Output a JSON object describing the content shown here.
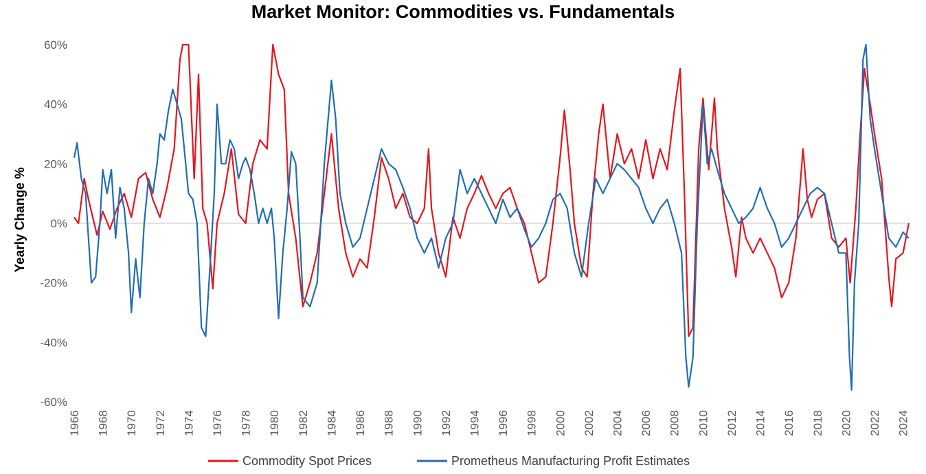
{
  "chart_data": {
    "type": "line",
    "title": "Market Monitor: Commodities vs. Fundamentals",
    "xlabel": "",
    "ylabel": "Yearly Change %",
    "xlim": [
      1966,
      2024.5
    ],
    "ylim": [
      -60,
      60
    ],
    "y_ticks": [
      60,
      40,
      20,
      0,
      -20,
      -40,
      -60
    ],
    "y_tick_labels": [
      "60%",
      "40%",
      "20%",
      "0%",
      "-20%",
      "-40%",
      "-60%"
    ],
    "x_ticks": [
      1966,
      1968,
      1970,
      1972,
      1974,
      1976,
      1978,
      1980,
      1982,
      1984,
      1986,
      1988,
      1990,
      1992,
      1994,
      1996,
      1998,
      2000,
      2002,
      2004,
      2006,
      2008,
      2010,
      2012,
      2014,
      2016,
      2018,
      2020,
      2022,
      2024
    ],
    "x_tick_labels": [
      "1966",
      "1968",
      "1970",
      "1972",
      "1974",
      "1976",
      "1978",
      "1980",
      "1982",
      "1984",
      "1986",
      "1988",
      "1990",
      "1992",
      "1994",
      "1996",
      "1998",
      "2000",
      "2002",
      "2004",
      "2006",
      "2008",
      "2010",
      "2012",
      "2014",
      "2016",
      "2018",
      "2020",
      "2022",
      "2024"
    ],
    "legend_position": "bottom",
    "series": [
      {
        "name": "Commodity Spot Prices",
        "color": "#E8141B",
        "points": [
          [
            1966.0,
            2
          ],
          [
            1966.3,
            0
          ],
          [
            1966.7,
            15
          ],
          [
            1967.0,
            8
          ],
          [
            1967.3,
            2
          ],
          [
            1967.6,
            -4
          ],
          [
            1968.0,
            4
          ],
          [
            1968.5,
            -2
          ],
          [
            1969.0,
            5
          ],
          [
            1969.5,
            10
          ],
          [
            1970.0,
            2
          ],
          [
            1970.5,
            15
          ],
          [
            1971.0,
            17
          ],
          [
            1971.5,
            8
          ],
          [
            1972.0,
            2
          ],
          [
            1972.5,
            12
          ],
          [
            1973.0,
            25
          ],
          [
            1973.4,
            55
          ],
          [
            1973.6,
            65
          ],
          [
            1974.0,
            60
          ],
          [
            1974.4,
            15
          ],
          [
            1974.7,
            50
          ],
          [
            1975.0,
            5
          ],
          [
            1975.3,
            0
          ],
          [
            1975.7,
            -22
          ],
          [
            1976.0,
            0
          ],
          [
            1976.5,
            10
          ],
          [
            1977.0,
            25
          ],
          [
            1977.5,
            3
          ],
          [
            1978.0,
            0
          ],
          [
            1978.5,
            20
          ],
          [
            1979.0,
            28
          ],
          [
            1979.5,
            25
          ],
          [
            1979.9,
            62
          ],
          [
            1980.3,
            50
          ],
          [
            1980.7,
            45
          ],
          [
            1981.0,
            10
          ],
          [
            1981.5,
            -5
          ],
          [
            1982.0,
            -28
          ],
          [
            1982.5,
            -20
          ],
          [
            1983.0,
            -10
          ],
          [
            1983.5,
            10
          ],
          [
            1984.0,
            30
          ],
          [
            1984.5,
            5
          ],
          [
            1985.0,
            -10
          ],
          [
            1985.5,
            -18
          ],
          [
            1986.0,
            -12
          ],
          [
            1986.5,
            -15
          ],
          [
            1987.0,
            2
          ],
          [
            1987.5,
            22
          ],
          [
            1988.0,
            15
          ],
          [
            1988.5,
            5
          ],
          [
            1989.0,
            10
          ],
          [
            1989.5,
            2
          ],
          [
            1990.0,
            0
          ],
          [
            1990.5,
            5
          ],
          [
            1990.8,
            25
          ],
          [
            1991.0,
            5
          ],
          [
            1991.5,
            -10
          ],
          [
            1992.0,
            -18
          ],
          [
            1992.5,
            2
          ],
          [
            1993.0,
            -5
          ],
          [
            1993.5,
            5
          ],
          [
            1994.0,
            10
          ],
          [
            1994.5,
            16
          ],
          [
            1995.0,
            10
          ],
          [
            1995.5,
            5
          ],
          [
            1996.0,
            10
          ],
          [
            1996.5,
            12
          ],
          [
            1997.0,
            5
          ],
          [
            1997.5,
            0
          ],
          [
            1998.0,
            -10
          ],
          [
            1998.5,
            -20
          ],
          [
            1999.0,
            -18
          ],
          [
            1999.5,
            0
          ],
          [
            2000.0,
            22
          ],
          [
            2000.3,
            38
          ],
          [
            2000.7,
            18
          ],
          [
            2001.0,
            0
          ],
          [
            2001.5,
            -15
          ],
          [
            2001.9,
            -18
          ],
          [
            2002.3,
            10
          ],
          [
            2002.7,
            30
          ],
          [
            2003.0,
            40
          ],
          [
            2003.5,
            15
          ],
          [
            2004.0,
            30
          ],
          [
            2004.5,
            20
          ],
          [
            2005.0,
            25
          ],
          [
            2005.5,
            15
          ],
          [
            2006.0,
            28
          ],
          [
            2006.5,
            15
          ],
          [
            2007.0,
            25
          ],
          [
            2007.5,
            18
          ],
          [
            2008.0,
            38
          ],
          [
            2008.4,
            52
          ],
          [
            2008.7,
            10
          ],
          [
            2009.0,
            -38
          ],
          [
            2009.3,
            -35
          ],
          [
            2009.7,
            25
          ],
          [
            2010.0,
            42
          ],
          [
            2010.4,
            18
          ],
          [
            2010.8,
            42
          ],
          [
            2011.0,
            25
          ],
          [
            2011.5,
            5
          ],
          [
            2012.0,
            -8
          ],
          [
            2012.3,
            -18
          ],
          [
            2012.7,
            2
          ],
          [
            2013.0,
            -5
          ],
          [
            2013.5,
            -10
          ],
          [
            2014.0,
            -5
          ],
          [
            2014.5,
            -10
          ],
          [
            2015.0,
            -15
          ],
          [
            2015.5,
            -25
          ],
          [
            2016.0,
            -20
          ],
          [
            2016.5,
            -5
          ],
          [
            2017.0,
            25
          ],
          [
            2017.3,
            8
          ],
          [
            2017.6,
            2
          ],
          [
            2018.0,
            8
          ],
          [
            2018.5,
            10
          ],
          [
            2019.0,
            -5
          ],
          [
            2019.5,
            -8
          ],
          [
            2020.0,
            -5
          ],
          [
            2020.3,
            -20
          ],
          [
            2020.7,
            5
          ],
          [
            2021.0,
            30
          ],
          [
            2021.3,
            52
          ],
          [
            2021.7,
            40
          ],
          [
            2022.0,
            30
          ],
          [
            2022.5,
            15
          ],
          [
            2023.0,
            -18
          ],
          [
            2023.2,
            -28
          ],
          [
            2023.5,
            -12
          ],
          [
            2024.0,
            -10
          ],
          [
            2024.4,
            0
          ]
        ]
      },
      {
        "name": "Prometheus Manufacturing Profit Estimates",
        "color": "#1F6DB5",
        "points": [
          [
            1966.0,
            22
          ],
          [
            1966.2,
            27
          ],
          [
            1966.5,
            15
          ],
          [
            1966.8,
            10
          ],
          [
            1967.0,
            -5
          ],
          [
            1967.2,
            -20
          ],
          [
            1967.5,
            -18
          ],
          [
            1967.8,
            0
          ],
          [
            1968.0,
            18
          ],
          [
            1968.3,
            10
          ],
          [
            1968.6,
            18
          ],
          [
            1968.9,
            -5
          ],
          [
            1969.2,
            12
          ],
          [
            1969.5,
            5
          ],
          [
            1969.8,
            -10
          ],
          [
            1970.0,
            -30
          ],
          [
            1970.3,
            -12
          ],
          [
            1970.6,
            -25
          ],
          [
            1970.9,
            0
          ],
          [
            1971.2,
            15
          ],
          [
            1971.5,
            10
          ],
          [
            1971.8,
            20
          ],
          [
            1972.0,
            30
          ],
          [
            1972.3,
            28
          ],
          [
            1972.6,
            38
          ],
          [
            1972.9,
            45
          ],
          [
            1973.2,
            40
          ],
          [
            1973.5,
            35
          ],
          [
            1973.8,
            20
          ],
          [
            1974.0,
            10
          ],
          [
            1974.3,
            8
          ],
          [
            1974.6,
            0
          ],
          [
            1974.9,
            -35
          ],
          [
            1975.2,
            -38
          ],
          [
            1975.5,
            -15
          ],
          [
            1975.8,
            10
          ],
          [
            1976.0,
            40
          ],
          [
            1976.3,
            20
          ],
          [
            1976.6,
            20
          ],
          [
            1976.9,
            28
          ],
          [
            1977.2,
            25
          ],
          [
            1977.5,
            15
          ],
          [
            1977.8,
            20
          ],
          [
            1978.0,
            22
          ],
          [
            1978.3,
            18
          ],
          [
            1978.6,
            10
          ],
          [
            1978.9,
            0
          ],
          [
            1979.2,
            5
          ],
          [
            1979.5,
            0
          ],
          [
            1979.8,
            5
          ],
          [
            1980.0,
            -5
          ],
          [
            1980.3,
            -32
          ],
          [
            1980.6,
            -10
          ],
          [
            1980.9,
            5
          ],
          [
            1981.2,
            24
          ],
          [
            1981.5,
            20
          ],
          [
            1981.8,
            -5
          ],
          [
            1982.0,
            -25
          ],
          [
            1982.5,
            -28
          ],
          [
            1983.0,
            -20
          ],
          [
            1983.5,
            20
          ],
          [
            1984.0,
            48
          ],
          [
            1984.3,
            35
          ],
          [
            1984.6,
            10
          ],
          [
            1985.0,
            0
          ],
          [
            1985.5,
            -8
          ],
          [
            1986.0,
            -5
          ],
          [
            1986.5,
            5
          ],
          [
            1987.0,
            15
          ],
          [
            1987.5,
            25
          ],
          [
            1988.0,
            20
          ],
          [
            1988.5,
            18
          ],
          [
            1989.0,
            12
          ],
          [
            1989.5,
            5
          ],
          [
            1990.0,
            -5
          ],
          [
            1990.5,
            -10
          ],
          [
            1991.0,
            -5
          ],
          [
            1991.5,
            -15
          ],
          [
            1992.0,
            -5
          ],
          [
            1992.5,
            0
          ],
          [
            1993.0,
            18
          ],
          [
            1993.5,
            10
          ],
          [
            1994.0,
            15
          ],
          [
            1994.5,
            10
          ],
          [
            1995.0,
            5
          ],
          [
            1995.5,
            0
          ],
          [
            1996.0,
            8
          ],
          [
            1996.5,
            2
          ],
          [
            1997.0,
            5
          ],
          [
            1997.5,
            -2
          ],
          [
            1998.0,
            -8
          ],
          [
            1998.5,
            -5
          ],
          [
            1999.0,
            0
          ],
          [
            1999.5,
            8
          ],
          [
            2000.0,
            10
          ],
          [
            2000.5,
            5
          ],
          [
            2001.0,
            -10
          ],
          [
            2001.5,
            -18
          ],
          [
            2002.0,
            0
          ],
          [
            2002.5,
            15
          ],
          [
            2003.0,
            10
          ],
          [
            2003.5,
            15
          ],
          [
            2004.0,
            20
          ],
          [
            2004.5,
            18
          ],
          [
            2005.0,
            15
          ],
          [
            2005.5,
            12
          ],
          [
            2006.0,
            5
          ],
          [
            2006.5,
            0
          ],
          [
            2007.0,
            5
          ],
          [
            2007.5,
            8
          ],
          [
            2008.0,
            0
          ],
          [
            2008.5,
            -10
          ],
          [
            2008.8,
            -45
          ],
          [
            2009.0,
            -55
          ],
          [
            2009.3,
            -45
          ],
          [
            2009.6,
            0
          ],
          [
            2010.0,
            40
          ],
          [
            2010.3,
            20
          ],
          [
            2010.6,
            25
          ],
          [
            2011.0,
            18
          ],
          [
            2011.5,
            10
          ],
          [
            2012.0,
            5
          ],
          [
            2012.5,
            0
          ],
          [
            2013.0,
            2
          ],
          [
            2013.5,
            5
          ],
          [
            2014.0,
            12
          ],
          [
            2014.5,
            5
          ],
          [
            2015.0,
            0
          ],
          [
            2015.5,
            -8
          ],
          [
            2016.0,
            -5
          ],
          [
            2016.5,
            0
          ],
          [
            2017.0,
            5
          ],
          [
            2017.5,
            10
          ],
          [
            2018.0,
            12
          ],
          [
            2018.5,
            10
          ],
          [
            2019.0,
            0
          ],
          [
            2019.5,
            -10
          ],
          [
            2020.0,
            -10
          ],
          [
            2020.25,
            -45
          ],
          [
            2020.4,
            -56
          ],
          [
            2020.6,
            -20
          ],
          [
            2020.9,
            0
          ],
          [
            2021.2,
            55
          ],
          [
            2021.4,
            60
          ],
          [
            2021.7,
            35
          ],
          [
            2022.0,
            25
          ],
          [
            2022.5,
            10
          ],
          [
            2023.0,
            -5
          ],
          [
            2023.5,
            -8
          ],
          [
            2024.0,
            -3
          ],
          [
            2024.4,
            -5
          ]
        ]
      }
    ]
  }
}
